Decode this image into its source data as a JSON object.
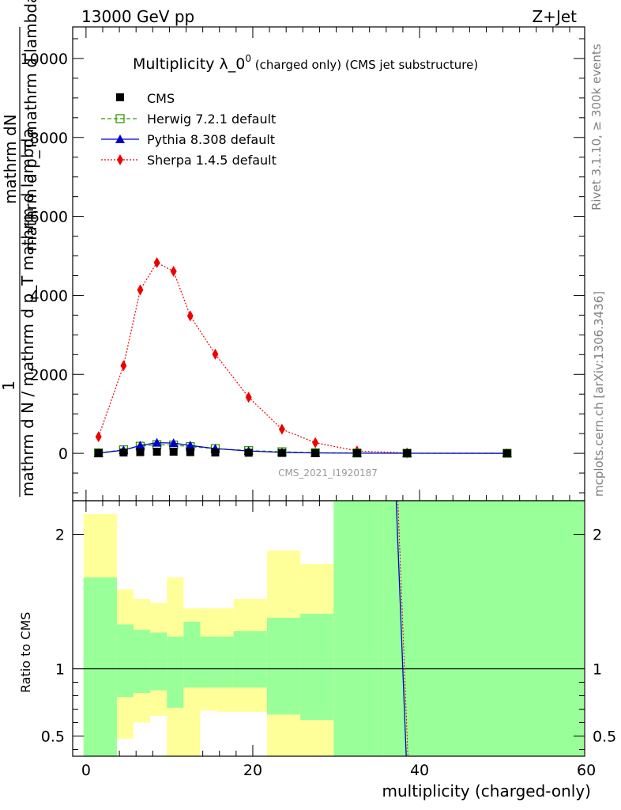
{
  "header": {
    "left": "13000 GeV pp",
    "right": "Z+Jet",
    "right_side_top": "Rivet 3.1.10, ≥ 300k events",
    "right_side_bottom": "mcplots.cern.ch [arXiv:1306.3436]"
  },
  "chart_data": {
    "type": "line",
    "title_main": "Multiplicity λ_0",
    "title_sup": "0",
    "title_suffix": " (charged only) (CMS jet substructure)",
    "ylabel_top": "mathrm dN",
    "ylabel_top2": "mathrm d p_T mathrm d lambda",
    "ylabel_one": "1",
    "ylabel_bottom": "mathrm d N / mathrm d p_T mathrm d lambda",
    "ratio_ylabel": "Ratio to CMS",
    "xlabel": "multiplicity (charged-only)",
    "watermark": "CMS_2021_I1920187",
    "xlim": [
      -1.6,
      59.8
    ],
    "ylim": [
      -1200,
      10800
    ],
    "yticks": [
      0,
      2000,
      4000,
      6000,
      8000,
      10000
    ],
    "yticklabels": [
      "0",
      "2000",
      "4000",
      "6000",
      "8000",
      "10000"
    ],
    "xticks": [
      0,
      20,
      40,
      60
    ],
    "xticklabels": [
      "0",
      "20",
      "40",
      "60"
    ],
    "ratio_ylim": [
      0.35,
      2.25
    ],
    "ratio_yticks": [
      0.5,
      1,
      2
    ],
    "ratio_yticklabels": [
      "0.5",
      "1",
      "2"
    ],
    "series": [
      {
        "name": "CMS",
        "color": "#000000",
        "marker": "square",
        "x": [
          1.5,
          4.5,
          6.5,
          8.5,
          10.5,
          12.5,
          15.5,
          19.5,
          23.5,
          27.5,
          32.5,
          38.5,
          50.5
        ],
        "values": [
          10,
          20,
          30,
          40,
          40,
          30,
          20,
          15,
          10,
          5,
          3,
          2,
          1
        ]
      },
      {
        "name": "Herwig 7.2.1 default",
        "color": "#339900",
        "marker": "open-square",
        "x": [
          1.5,
          4.5,
          6.5,
          8.5,
          10.5,
          12.5,
          15.5,
          19.5,
          23.5,
          27.5,
          32.5,
          38.5,
          50.5
        ],
        "values": [
          10,
          90,
          180,
          220,
          210,
          170,
          120,
          70,
          40,
          15,
          8,
          3,
          1
        ]
      },
      {
        "name": "Pythia 8.308 default",
        "color": "#0000cc",
        "marker": "triangle",
        "x": [
          1.5,
          4.5,
          6.5,
          8.5,
          10.5,
          12.5,
          15.5,
          19.5,
          23.5,
          27.5,
          32.5,
          38.5,
          50.5
        ],
        "values": [
          5,
          80,
          200,
          270,
          260,
          200,
          120,
          60,
          25,
          10,
          5,
          2,
          1
        ]
      },
      {
        "name": "Sherpa 1.4.5 default",
        "color": "#ee0000",
        "marker": "diamond",
        "x": [
          1.5,
          4.5,
          6.5,
          8.5,
          10.5,
          12.5,
          15.5,
          19.5,
          23.5,
          27.5,
          32.5,
          38.5
        ],
        "values": [
          420,
          2220,
          4140,
          4830,
          4610,
          3480,
          2510,
          1420,
          610,
          270,
          60,
          10
        ]
      }
    ],
    "ratio_bands": [
      {
        "x0": -0.3,
        "x1": 3.7,
        "g_lo": 0.35,
        "g_hi": 1.68,
        "y_lo": 0.35,
        "y_hi": 2.15
      },
      {
        "x0": 3.7,
        "x1": 5.7,
        "g_lo": 0.79,
        "g_hi": 1.33,
        "y_lo": 0.48,
        "y_hi": 1.59
      },
      {
        "x0": 5.7,
        "x1": 7.7,
        "g_lo": 0.82,
        "g_hi": 1.29,
        "y_lo": 0.6,
        "y_hi": 1.52
      },
      {
        "x0": 7.7,
        "x1": 9.7,
        "g_lo": 0.84,
        "g_hi": 1.27,
        "y_lo": 0.65,
        "y_hi": 1.49
      },
      {
        "x0": 9.7,
        "x1": 11.7,
        "g_lo": 0.71,
        "g_hi": 1.24,
        "y_lo": 0.35,
        "y_hi": 1.68
      },
      {
        "x0": 11.7,
        "x1": 13.7,
        "g_lo": 0.86,
        "g_hi": 1.35,
        "y_lo": 0.35,
        "y_hi": 1.45
      },
      {
        "x0": 13.7,
        "x1": 15.7,
        "g_lo": 0.86,
        "g_hi": 1.24,
        "y_lo": 0.69,
        "y_hi": 1.45
      },
      {
        "x0": 15.7,
        "x1": 17.7,
        "g_lo": 0.86,
        "g_hi": 1.24,
        "y_lo": 0.68,
        "y_hi": 1.45
      },
      {
        "x0": 17.7,
        "x1": 21.7,
        "g_lo": 0.86,
        "g_hi": 1.28,
        "y_lo": 0.68,
        "y_hi": 1.52
      },
      {
        "x0": 21.7,
        "x1": 25.7,
        "g_lo": 0.66,
        "g_hi": 1.38,
        "y_lo": 0.35,
        "y_hi": 1.88
      },
      {
        "x0": 25.7,
        "x1": 29.7,
        "g_lo": 0.62,
        "g_hi": 1.41,
        "y_lo": 0.35,
        "y_hi": 1.78
      },
      {
        "x0": 29.7,
        "x1": 35.7,
        "g_lo": 0.35,
        "g_hi": 2.25,
        "y_lo": 0.35,
        "y_hi": 2.25
      },
      {
        "x0": 35.7,
        "x1": 59.7,
        "g_lo": 0.35,
        "g_hi": 2.25,
        "y_lo": 0.35,
        "y_hi": 2.25
      }
    ],
    "ratio_lines": {
      "pythia": {
        "color": "#0000cc",
        "x": [
          37.2,
          38.4
        ]
      },
      "sherpa": {
        "color": "#ee0000",
        "x": [
          37.4,
          38.6
        ]
      }
    }
  }
}
